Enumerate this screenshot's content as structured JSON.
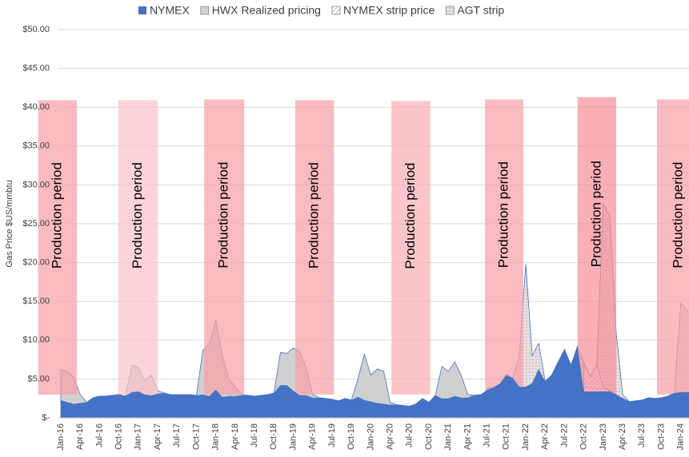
{
  "chart_data": {
    "type": "area",
    "y_label": "Gas Price $US/mmbtu",
    "categories": [
      "Jan-16",
      null,
      null,
      "Apr-16",
      null,
      null,
      "Jul-16",
      null,
      null,
      "Oct-16",
      null,
      null,
      "Jan-17",
      null,
      null,
      "Apr-17",
      null,
      null,
      "Jul-17",
      null,
      null,
      "Oct-17",
      null,
      null,
      "Jan-18",
      null,
      null,
      "Apr-18",
      null,
      null,
      "Jul-18",
      null,
      null,
      "Oct-18",
      null,
      null,
      "Jan-19",
      null,
      null,
      "Apr-19",
      null,
      null,
      "Jul-19",
      null,
      null,
      "Oct-19",
      null,
      null,
      "Jan-20",
      null,
      null,
      "Apr-20",
      null,
      null,
      "Jul-20",
      null,
      null,
      "Oct-20",
      null,
      null,
      "Jan-21",
      null,
      null,
      "Apr-21",
      null,
      null,
      "Jul-21",
      null,
      null,
      "Oct-21",
      null,
      null,
      "Jan-22",
      null,
      null,
      "Apr-22",
      null,
      null,
      "Jul-22",
      null,
      null,
      "Oct-22",
      null,
      null,
      "Jan-23",
      null,
      null,
      "Apr-23",
      null,
      null,
      "Jul-23",
      null,
      null,
      "Oct-23",
      null,
      null,
      "Jan-24",
      null,
      null
    ],
    "series": [
      {
        "name": "HWX Realized pricing",
        "color": "#d0d0d0",
        "fill": "solid",
        "values": [
          6.2,
          6.0,
          5.2,
          3.0,
          2.0,
          2.6,
          2.8,
          2.8,
          2.9,
          3.0,
          2.8,
          6.8,
          6.5,
          4.8,
          5.5,
          3.5,
          3.2,
          3.0,
          3.0,
          3.0,
          3.0,
          2.9,
          8.7,
          9.5,
          12.6,
          8.0,
          5.0,
          4.0,
          3.0,
          2.9,
          2.8,
          2.9,
          3.0,
          3.2,
          8.4,
          8.3,
          9.0,
          8.5,
          6.5,
          3.0,
          2.6,
          2.5,
          2.4,
          2.2,
          2.5,
          2.3,
          5.0,
          8.2,
          5.5,
          6.3,
          6.0,
          2.0,
          1.7,
          1.6,
          1.5,
          1.8,
          2.5,
          2.0,
          2.9,
          6.6,
          6.0,
          7.2,
          5.5,
          3.0,
          2.9,
          3.0,
          null,
          null,
          null,
          null,
          null,
          null,
          null,
          null,
          null,
          null,
          null,
          null,
          null,
          null,
          null,
          null,
          null,
          null,
          null,
          null,
          null,
          null,
          null,
          null,
          null,
          null,
          null,
          null,
          null,
          null,
          null,
          null,
          null
        ]
      },
      {
        "name": "AGT strip",
        "color": "#e0e0e0",
        "fill": "dots",
        "values": [
          null,
          null,
          null,
          null,
          null,
          null,
          null,
          null,
          null,
          null,
          null,
          null,
          null,
          null,
          null,
          null,
          null,
          null,
          null,
          null,
          null,
          null,
          null,
          null,
          null,
          null,
          null,
          null,
          null,
          null,
          null,
          null,
          null,
          null,
          null,
          null,
          null,
          null,
          null,
          null,
          null,
          null,
          null,
          null,
          null,
          null,
          null,
          null,
          null,
          null,
          null,
          null,
          null,
          null,
          null,
          null,
          null,
          null,
          null,
          null,
          null,
          null,
          null,
          null,
          null,
          null,
          3.8,
          4.0,
          4.4,
          5.6,
          5.1,
          8.0,
          19.8,
          8.0,
          9.6,
          4.7,
          5.5,
          7.2,
          8.8,
          6.8,
          9.2,
          7.0,
          5.3,
          6.8,
          27.6,
          26.0,
          11.0,
          3.0,
          2.1,
          2.2,
          2.3,
          2.6,
          2.5,
          2.6,
          2.8,
          3.2,
          14.8,
          13.8,
          13.0
        ]
      },
      {
        "name": "NYMEX strip price",
        "color": "#8faadc",
        "fill": "hatch",
        "values": [
          null,
          null,
          null,
          null,
          null,
          null,
          null,
          null,
          null,
          null,
          null,
          null,
          null,
          null,
          null,
          null,
          null,
          null,
          null,
          null,
          null,
          null,
          null,
          null,
          null,
          null,
          null,
          null,
          null,
          null,
          null,
          null,
          null,
          null,
          null,
          null,
          null,
          null,
          null,
          null,
          null,
          null,
          null,
          null,
          null,
          null,
          null,
          null,
          null,
          null,
          null,
          null,
          null,
          null,
          null,
          null,
          null,
          null,
          null,
          null,
          null,
          null,
          null,
          null,
          null,
          null,
          null,
          null,
          null,
          null,
          null,
          null,
          null,
          null,
          null,
          null,
          null,
          null,
          null,
          null,
          null,
          7.0,
          5.3,
          6.8,
          4.0,
          3.5,
          3.0,
          2.5,
          2.1,
          null,
          null,
          null,
          null,
          null,
          null,
          null,
          null,
          null,
          null
        ]
      },
      {
        "name": "NYMEX",
        "color": "#4472c4",
        "fill": "solid",
        "values": [
          2.3,
          2.0,
          1.8,
          1.9,
          2.0,
          2.6,
          2.8,
          2.8,
          2.9,
          3.0,
          2.8,
          3.3,
          3.4,
          3.0,
          2.9,
          3.1,
          3.2,
          3.0,
          3.0,
          3.0,
          3.0,
          2.9,
          3.0,
          2.8,
          3.6,
          2.7,
          2.8,
          2.8,
          2.9,
          2.9,
          2.8,
          2.9,
          3.0,
          3.2,
          4.2,
          4.2,
          3.5,
          2.9,
          2.9,
          2.6,
          2.6,
          2.5,
          2.4,
          2.2,
          2.5,
          2.3,
          2.7,
          2.3,
          2.1,
          1.9,
          1.8,
          1.7,
          1.7,
          1.6,
          1.5,
          1.8,
          2.5,
          2.0,
          2.9,
          2.5,
          2.5,
          2.8,
          2.6,
          2.6,
          2.9,
          3.0,
          3.6,
          3.9,
          4.4,
          5.5,
          5.1,
          4.0,
          4.0,
          4.5,
          6.3,
          4.7,
          5.5,
          7.2,
          8.8,
          6.8,
          9.2,
          3.4,
          3.4,
          3.4,
          3.4,
          3.4,
          3.0,
          2.5,
          2.1,
          2.2,
          2.3,
          2.6,
          2.5,
          2.6,
          2.8,
          3.2,
          3.3,
          3.3,
          3.3
        ]
      }
    ],
    "legend_order": [
      3,
      0,
      2,
      1
    ],
    "periods": [
      {
        "label": "Production period",
        "start": -3.5,
        "end": 2.5,
        "top": 40.9,
        "bottom": 3.0,
        "color": "#f7a1a8"
      },
      {
        "label": "Production period",
        "start": 8.9,
        "end": 15.0,
        "top": 40.9,
        "bottom": 3.0,
        "color": "#fbc4c8"
      },
      {
        "label": "Production period",
        "start": 22.2,
        "end": 28.4,
        "top": 41.0,
        "bottom": 3.0,
        "color": "#f7a1a8"
      },
      {
        "label": "Production period",
        "start": 36.3,
        "end": 42.3,
        "top": 40.9,
        "bottom": 3.0,
        "color": "#f7a1a8"
      },
      {
        "label": "Production period",
        "start": 51.2,
        "end": 57.2,
        "top": 40.8,
        "bottom": 3.0,
        "color": "#f9b0b5"
      },
      {
        "label": "Production period",
        "start": 65.7,
        "end": 71.6,
        "top": 41.0,
        "bottom": 3.1,
        "color": "#f7a1a8"
      },
      {
        "label": "Production period",
        "start": 80.0,
        "end": 86.0,
        "top": 41.3,
        "bottom": 3.0,
        "color": "#f59098"
      },
      {
        "label": "Production period",
        "start": 92.3,
        "end": 99.0,
        "top": 41.0,
        "bottom": 3.0,
        "color": "#f7a1a8"
      }
    ],
    "ylim": [
      0,
      50
    ],
    "yticks": [
      {
        "value": 0,
        "label": "$-"
      },
      {
        "value": 5,
        "label": "$5.00"
      },
      {
        "value": 10,
        "label": "$10.00"
      },
      {
        "value": 15,
        "label": "$15.00"
      },
      {
        "value": 20,
        "label": "$20.00"
      },
      {
        "value": 25,
        "label": "$25.00"
      },
      {
        "value": 30,
        "label": "$30.00"
      },
      {
        "value": 35,
        "label": "$35.00"
      },
      {
        "value": 40,
        "label": "$40.00"
      },
      {
        "value": 45,
        "label": "$45.00"
      },
      {
        "value": 50,
        "label": "$50.00"
      }
    ],
    "grid": true,
    "legend": "top"
  }
}
